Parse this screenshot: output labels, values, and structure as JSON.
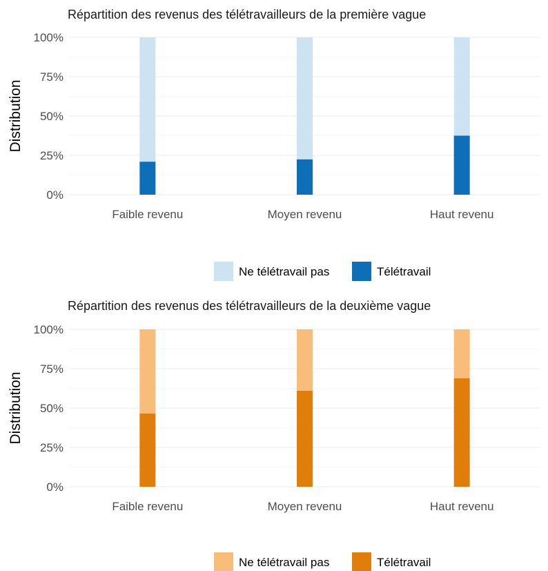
{
  "chart_data": [
    {
      "type": "bar",
      "stacked": true,
      "title": "Répartition des revenus des télétravailleurs de la première vague",
      "xlabel": "",
      "ylabel": "Distribution",
      "ylim": [
        0,
        1
      ],
      "yticks": [
        "0%",
        "25%",
        "50%",
        "75%",
        "100%"
      ],
      "categories": [
        "Faible revenu",
        "Moyen revenu",
        "Haut revenu"
      ],
      "series": [
        {
          "name": "Télétravail",
          "values": [
            0.21,
            0.225,
            0.375
          ],
          "color": "#0f6eb8"
        },
        {
          "name": "Ne télétravail pas",
          "values": [
            0.79,
            0.775,
            0.625
          ],
          "color": "#cde3f2"
        }
      ],
      "legend": {
        "position": "bottom",
        "entries": [
          "Ne télétravail pas",
          "Télétravail"
        ]
      },
      "grid": true
    },
    {
      "type": "bar",
      "stacked": true,
      "title": "Répartition des revenus des télétravailleurs de la deuxième vague",
      "xlabel": "",
      "ylabel": "Distribution",
      "ylim": [
        0,
        1
      ],
      "yticks": [
        "0%",
        "25%",
        "50%",
        "75%",
        "100%"
      ],
      "categories": [
        "Faible revenu",
        "Moyen revenu",
        "Haut revenu"
      ],
      "series": [
        {
          "name": "Télétravail",
          "values": [
            0.465,
            0.61,
            0.69
          ],
          "color": "#e07d0b"
        },
        {
          "name": "Ne télétravail pas",
          "values": [
            0.535,
            0.39,
            0.31
          ],
          "color": "#f9bd7b"
        }
      ],
      "legend": {
        "position": "bottom",
        "entries": [
          "Ne télétravail pas",
          "Télétravail"
        ]
      },
      "grid": true
    }
  ]
}
